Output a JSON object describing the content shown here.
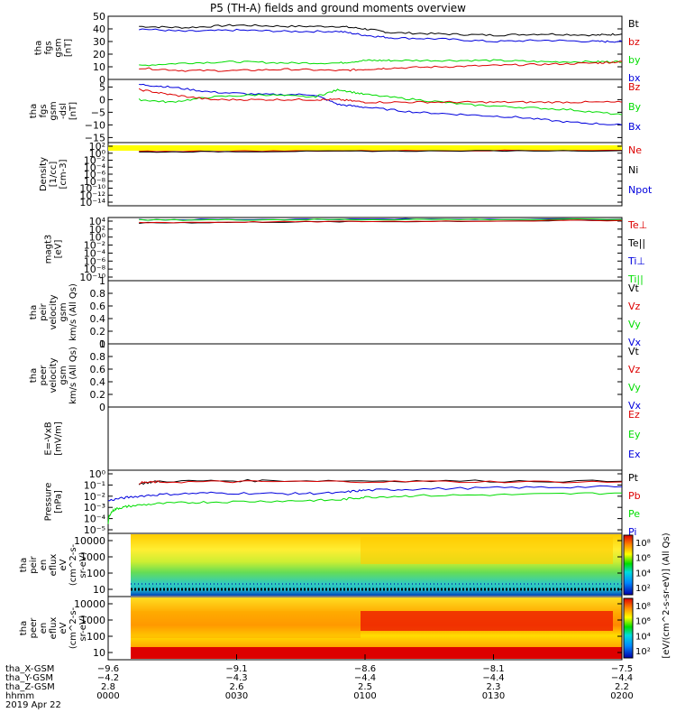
{
  "title": "P5 (TH-A) fields and ground moments overview",
  "colors": {
    "black": "#000000",
    "red": "#dd0000",
    "green": "#00dd00",
    "blue": "#0000dd",
    "yellow": "#ffff00"
  },
  "chart_data": [
    {
      "type": "line",
      "ylabel": [
        "tha",
        "fgs",
        "gsm",
        "[nT]"
      ],
      "ylim": [
        0,
        50
      ],
      "yticks": [
        0,
        10,
        20,
        30,
        40,
        50
      ],
      "legend": [
        {
          "name": "Bt",
          "color": "black"
        },
        {
          "name": "bz",
          "color": "red"
        },
        {
          "name": "by",
          "color": "green"
        },
        {
          "name": "bx",
          "color": "blue"
        }
      ],
      "series": [
        {
          "name": "Bt",
          "color": "black",
          "x": [
            0.06,
            0.15,
            0.25,
            0.35,
            0.45,
            0.5,
            0.55,
            0.65,
            0.75,
            0.85,
            0.95,
            1.0
          ],
          "y": [
            42,
            41,
            43,
            42,
            42,
            40,
            37,
            36,
            35,
            36,
            35,
            36
          ]
        },
        {
          "name": "bx",
          "color": "blue",
          "x": [
            0.06,
            0.15,
            0.25,
            0.35,
            0.45,
            0.5,
            0.55,
            0.65,
            0.75,
            0.85,
            0.95,
            1.0
          ],
          "y": [
            40,
            38,
            39,
            38,
            38,
            35,
            33,
            32,
            30,
            31,
            30,
            30
          ]
        },
        {
          "name": "by",
          "color": "green",
          "x": [
            0.06,
            0.15,
            0.25,
            0.35,
            0.45,
            0.5,
            0.55,
            0.65,
            0.75,
            0.85,
            0.95,
            1.0
          ],
          "y": [
            11,
            13,
            14,
            13,
            13,
            15,
            15,
            15,
            15,
            14,
            14,
            14
          ]
        },
        {
          "name": "bz",
          "color": "red",
          "x": [
            0.06,
            0.15,
            0.25,
            0.35,
            0.45,
            0.5,
            0.55,
            0.65,
            0.75,
            0.85,
            0.95,
            1.0
          ],
          "y": [
            9,
            7,
            7,
            8,
            7,
            8,
            9,
            10,
            11,
            12,
            13,
            14
          ]
        }
      ]
    },
    {
      "type": "line",
      "ylabel": [
        "tha",
        "fgs",
        "gsm",
        "-dsl",
        "[nT]"
      ],
      "ylim": [
        -17,
        8
      ],
      "yticks": [
        -15,
        -10,
        -5,
        0,
        5
      ],
      "legend": [
        {
          "name": "Bz",
          "color": "red"
        },
        {
          "name": "By",
          "color": "green"
        },
        {
          "name": "Bx",
          "color": "blue"
        }
      ],
      "series": [
        {
          "name": "Bx",
          "color": "blue",
          "x": [
            0.06,
            0.12,
            0.2,
            0.3,
            0.4,
            0.45,
            0.5,
            0.6,
            0.7,
            0.8,
            0.9,
            1.0
          ],
          "y": [
            6,
            5,
            3,
            2,
            2,
            -2,
            -3,
            -5,
            -6,
            -7,
            -9,
            -10
          ]
        },
        {
          "name": "By",
          "color": "green",
          "x": [
            0.06,
            0.12,
            0.2,
            0.3,
            0.4,
            0.45,
            0.5,
            0.6,
            0.7,
            0.8,
            0.9,
            1.0
          ],
          "y": [
            0,
            -1,
            1,
            2,
            1,
            4,
            2,
            0,
            -2,
            -3,
            -4,
            -6
          ]
        },
        {
          "name": "Bz",
          "color": "red",
          "x": [
            0.06,
            0.12,
            0.2,
            0.3,
            0.4,
            0.45,
            0.5,
            0.6,
            0.7,
            0.8,
            0.9,
            1.0
          ],
          "y": [
            4,
            2,
            0,
            0,
            0,
            0,
            -1,
            -1,
            -1,
            -1,
            -1,
            -1
          ]
        }
      ]
    },
    {
      "type": "line",
      "scale": "log",
      "ylabel": [
        "Density",
        "[1/cc]",
        "[cm-3]"
      ],
      "ylim": [
        1e-15,
        1000.0
      ],
      "yticks": [
        "10²",
        "10⁰",
        "10⁻²",
        "10⁻⁴",
        "10⁻⁶",
        "10⁻⁸",
        "10⁻¹⁰",
        "10⁻¹²",
        "10⁻¹⁴"
      ],
      "legend": [
        {
          "name": "Ne",
          "color": "red"
        },
        {
          "name": "Ni",
          "color": "black"
        },
        {
          "name": "Npot",
          "color": "blue"
        }
      ],
      "series": [
        {
          "name": "Ne",
          "color": "red",
          "x": [
            0.06,
            0.3,
            0.6,
            1.0
          ],
          "y": [
            3,
            4,
            5,
            6
          ]
        },
        {
          "name": "Ni",
          "color": "black",
          "x": [
            0.06,
            0.3,
            0.6,
            1.0
          ],
          "y": [
            2,
            3,
            4,
            5
          ]
        }
      ]
    },
    {
      "type": "line",
      "scale": "log",
      "ylabel": [
        "magt3",
        "[eV]"
      ],
      "ylim": [
        1e-11,
        10000.0
      ],
      "yticks": [
        "10⁴",
        "10²",
        "10⁰",
        "10⁻²",
        "10⁻⁴",
        "10⁻⁶",
        "10⁻⁸",
        "10⁻¹⁰"
      ],
      "legend": [
        {
          "name": "Te⊥",
          "color": "red"
        },
        {
          "name": "Te||",
          "color": "black"
        },
        {
          "name": "Ti⊥",
          "color": "blue"
        },
        {
          "name": "Ti||",
          "color": "green"
        }
      ],
      "series": [
        {
          "name": "Ti",
          "color": "blue",
          "x": [
            0.06,
            0.3,
            0.6,
            1.0
          ],
          "y": [
            3000,
            3500,
            4000,
            4000
          ]
        },
        {
          "name": "Ti2",
          "color": "green",
          "x": [
            0.06,
            0.3,
            0.6,
            1.0
          ],
          "y": [
            2500,
            3000,
            3500,
            3500
          ]
        },
        {
          "name": "Te",
          "color": "black",
          "x": [
            0.06,
            0.3,
            0.6,
            1.0
          ],
          "y": [
            500,
            800,
            1200,
            2000
          ]
        },
        {
          "name": "Te2",
          "color": "red",
          "x": [
            0.06,
            0.3,
            0.6,
            1.0
          ],
          "y": [
            600,
            900,
            1300,
            2100
          ]
        }
      ]
    },
    {
      "type": "line",
      "ylabel": [
        "tha",
        "peir",
        "velocity",
        "gsm",
        "km/s (All Qs)"
      ],
      "ylim": [
        0,
        1
      ],
      "yticks": [
        0.0,
        0.2,
        0.4,
        0.6,
        0.8,
        1.0
      ],
      "legend": [
        {
          "name": "Vt",
          "color": "black"
        },
        {
          "name": "Vz",
          "color": "red"
        },
        {
          "name": "Vy",
          "color": "green"
        },
        {
          "name": "Vx",
          "color": "blue"
        }
      ],
      "series": []
    },
    {
      "type": "line",
      "ylabel": [
        "tha",
        "peer",
        "velocity",
        "gsm",
        "km/s (All Qs)"
      ],
      "ylim": [
        0,
        1
      ],
      "yticks": [
        0.0,
        0.2,
        0.4,
        0.6,
        0.8,
        1.0
      ],
      "legend": [
        {
          "name": "Vt",
          "color": "black"
        },
        {
          "name": "Vz",
          "color": "red"
        },
        {
          "name": "Vy",
          "color": "green"
        },
        {
          "name": "Vx",
          "color": "blue"
        }
      ],
      "series": []
    },
    {
      "type": "line",
      "ylabel": [
        "E=-VxB",
        "[mV/m]"
      ],
      "ylim": [
        0,
        1
      ],
      "yticks": [],
      "legend": [
        {
          "name": "Ez",
          "color": "red"
        },
        {
          "name": "Ey",
          "color": "green"
        },
        {
          "name": "Ex",
          "color": "blue"
        }
      ],
      "series": []
    },
    {
      "type": "line",
      "scale": "log",
      "ylabel": [
        "Pressure",
        "[nPa]"
      ],
      "ylim": [
        1e-06,
        10.0
      ],
      "yticks": [
        "10⁰",
        "10⁻¹",
        "10⁻²",
        "10⁻³",
        "10⁻⁴",
        "10⁻⁵"
      ],
      "legend": [
        {
          "name": "Pt",
          "color": "black"
        },
        {
          "name": "Pb",
          "color": "red"
        },
        {
          "name": "Pe",
          "color": "green"
        },
        {
          "name": "Pi",
          "color": "blue"
        }
      ],
      "series": [
        {
          "name": "Pt",
          "color": "black",
          "x": [
            0.06,
            0.1,
            0.3,
            0.6,
            1.0
          ],
          "y": [
            0.3,
            0.6,
            0.7,
            0.65,
            0.6
          ]
        },
        {
          "name": "Pb",
          "color": "red",
          "x": [
            0.06,
            0.1,
            0.3,
            0.6,
            1.0
          ],
          "y": [
            0.4,
            0.5,
            0.55,
            0.55,
            0.5
          ]
        },
        {
          "name": "Pi",
          "color": "blue",
          "x": [
            0.0,
            0.04,
            0.1,
            0.2,
            0.35,
            0.45,
            0.5,
            0.6,
            0.8,
            1.0
          ],
          "y": [
            0.004,
            0.01,
            0.02,
            0.03,
            0.025,
            0.03,
            0.06,
            0.08,
            0.12,
            0.15
          ]
        },
        {
          "name": "Pe",
          "color": "green",
          "x": [
            0.0,
            0.015,
            0.04,
            0.1,
            0.2,
            0.35,
            0.45,
            0.5,
            0.6,
            0.8,
            1.0
          ],
          "y": [
            1e-05,
            0.0005,
            0.001,
            0.002,
            0.003,
            0.004,
            0.005,
            0.01,
            0.015,
            0.02,
            0.03
          ]
        }
      ]
    },
    {
      "type": "heatmap",
      "ylabel": [
        "tha",
        "peir",
        "en",
        "eflux",
        "eV",
        "(cm^2-s-",
        "sr-eV)"
      ],
      "ylim": [
        5,
        20000
      ],
      "yticks": [
        "10000",
        "1000",
        "100",
        "10"
      ],
      "colorbar": [
        "10⁸",
        "10⁶",
        "10⁴",
        "10²"
      ]
    },
    {
      "type": "heatmap",
      "ylabel": [
        "tha",
        "peer",
        "en",
        "eflux",
        "eV",
        "(cm^2-s-",
        "sr-eV)"
      ],
      "ylim": [
        5,
        20000
      ],
      "yticks": [
        "10000",
        "1000",
        "100",
        "10"
      ],
      "colorbar": [
        "10⁸",
        "10⁶",
        "10⁴",
        "10²"
      ]
    }
  ],
  "colorbar_label": "[eV/(cm^2-s-sr-eV)] (All Qs)",
  "xaxis": {
    "rows": [
      {
        "label": "tha_X-GSM",
        "values": [
          "-9.6",
          "-9.1",
          "-8.6",
          "-8.1",
          "-7.5"
        ]
      },
      {
        "label": "tha_Y-GSM",
        "values": [
          "-4.2",
          "-4.3",
          "-4.4",
          "-4.4",
          "-4.4"
        ]
      },
      {
        "label": "tha_Z-GSM",
        "values": [
          "2.8",
          "2.6",
          "2.5",
          "2.3",
          "2.2"
        ]
      },
      {
        "label": "hhmm",
        "values": [
          "0000",
          "0030",
          "0100",
          "0130",
          "0200"
        ]
      }
    ],
    "date": "2019 Apr 22"
  }
}
